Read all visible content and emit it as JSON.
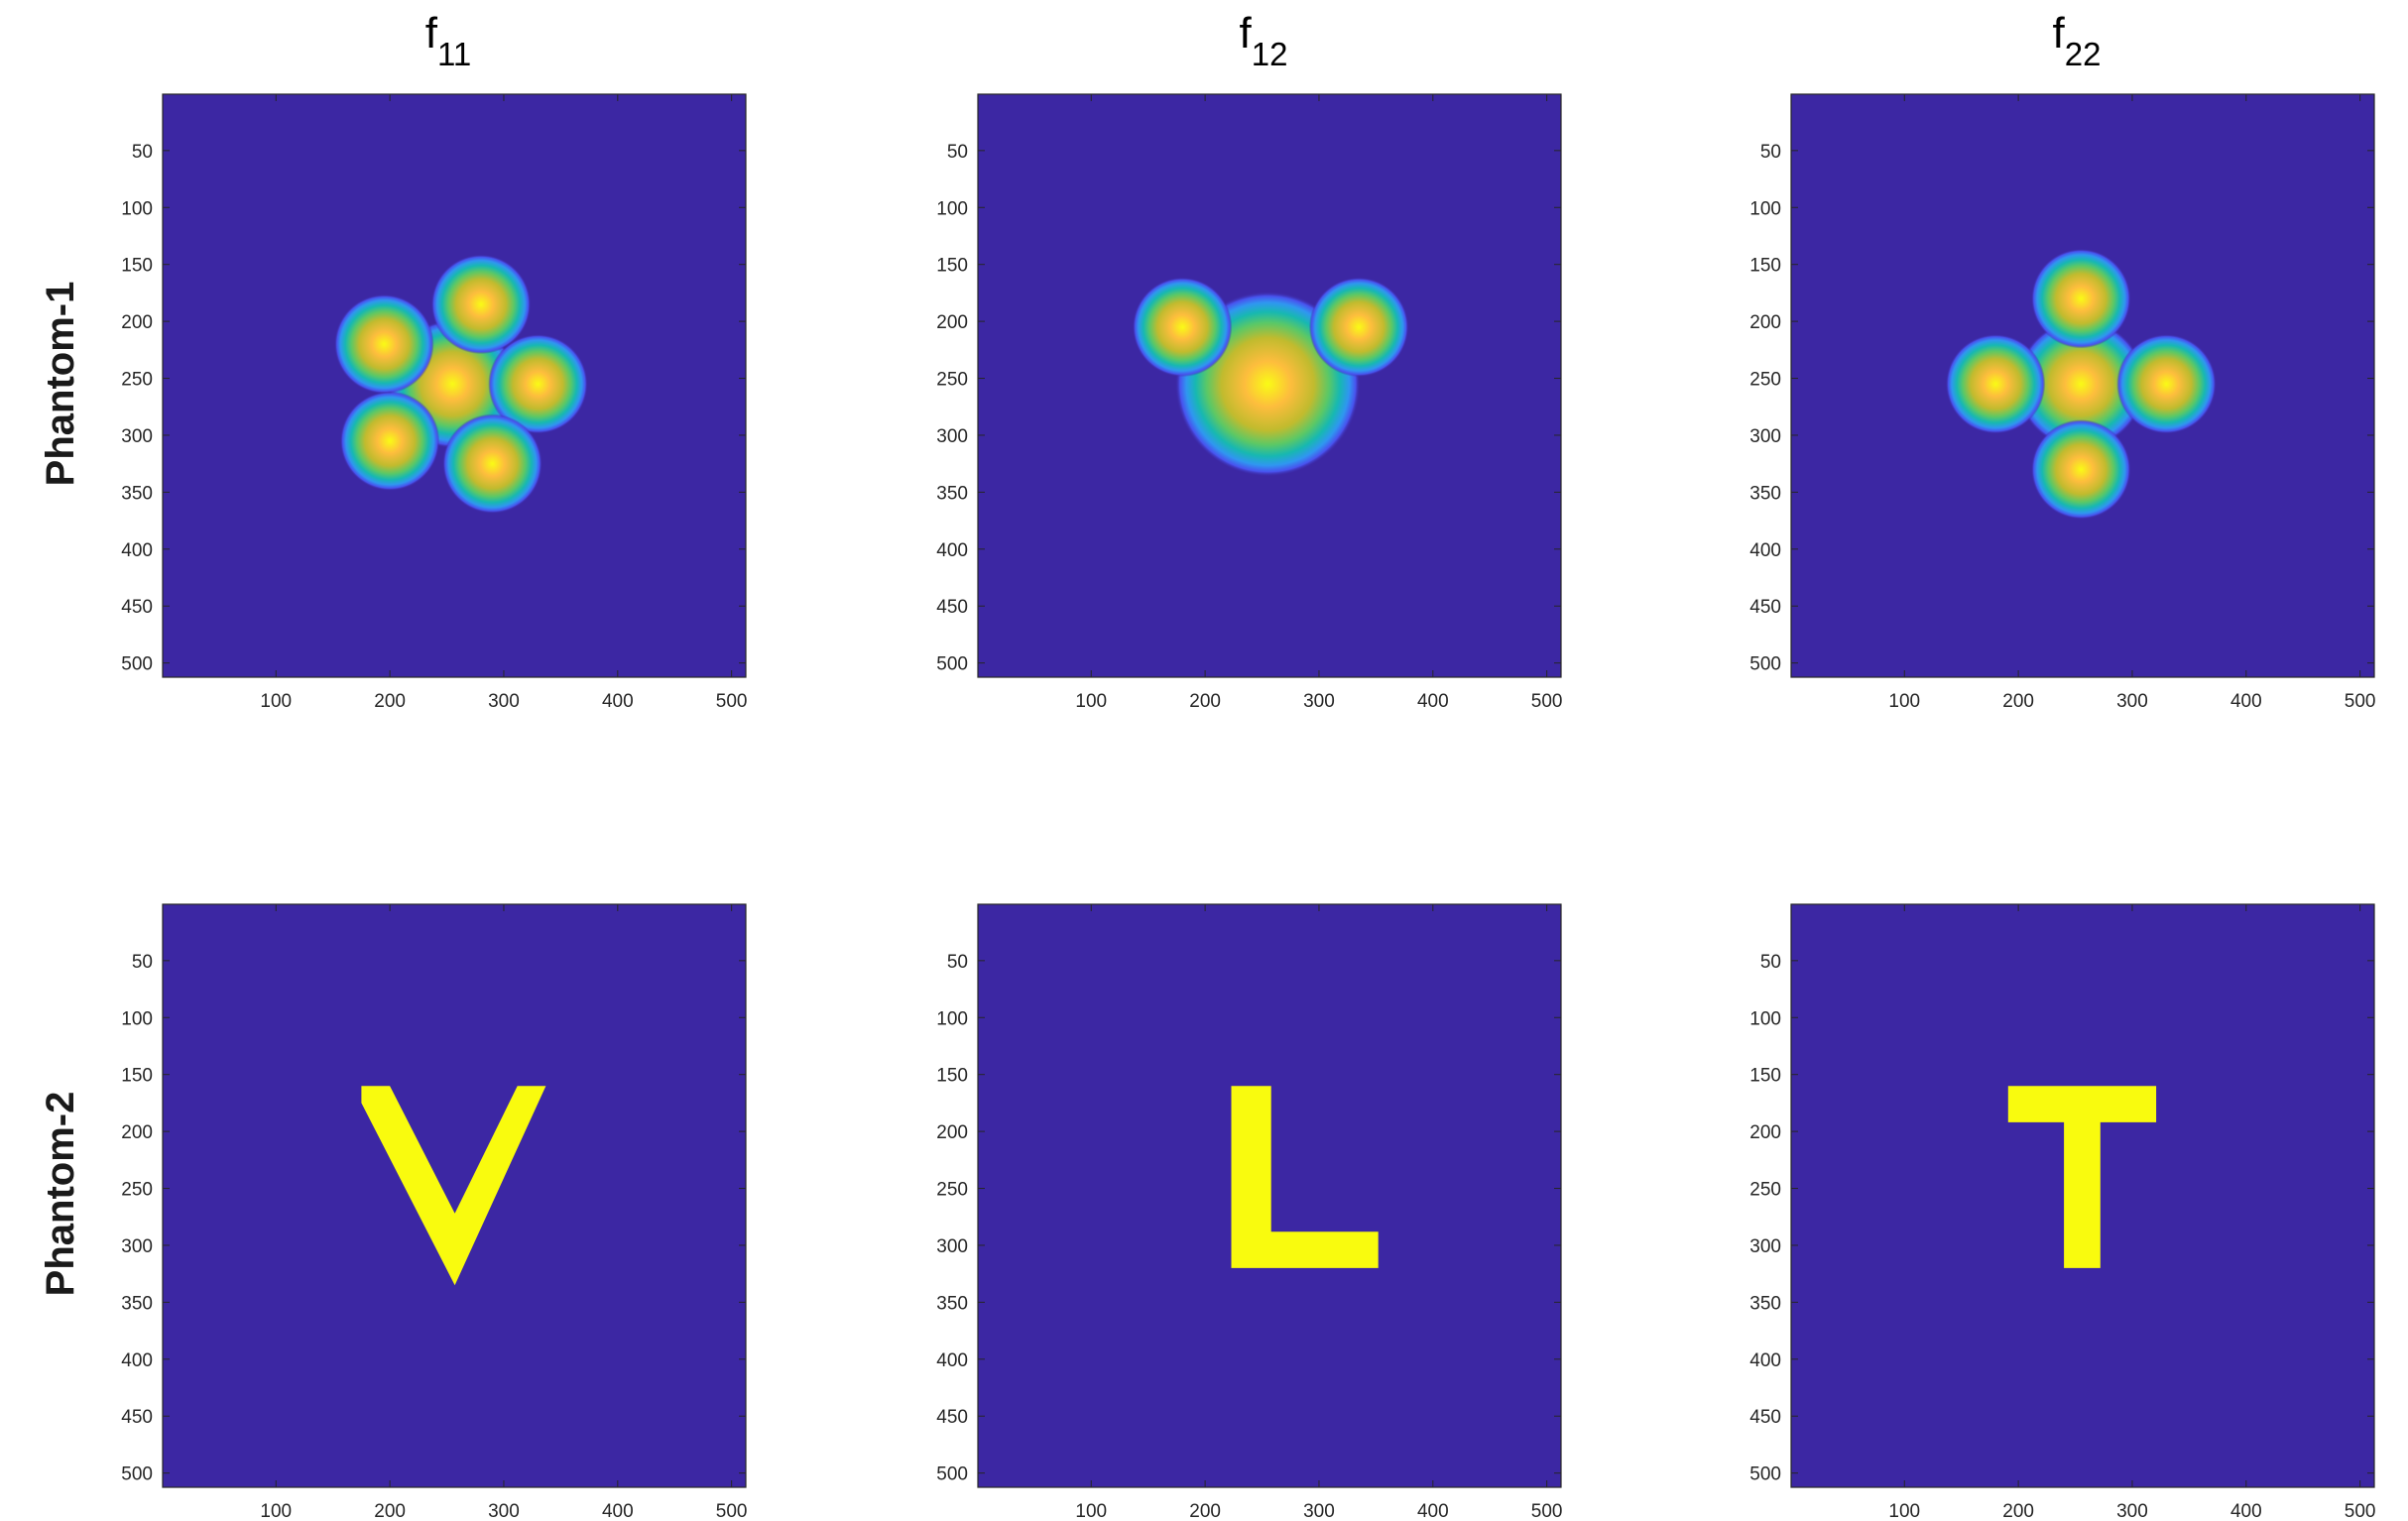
{
  "chart_data": {
    "type": "heatmap",
    "columns": [
      {
        "base": "f",
        "subscript": "11"
      },
      {
        "base": "f",
        "subscript": "12"
      },
      {
        "base": "f",
        "subscript": "22"
      }
    ],
    "rows": [
      "Phantom-1",
      "Phantom-2"
    ],
    "xlim": [
      0.5,
      512.5
    ],
    "ylim": [
      0.5,
      512.5
    ],
    "y_reversed": true,
    "x_ticks": [
      100,
      200,
      300,
      400,
      500
    ],
    "y_ticks": [
      50,
      100,
      150,
      200,
      250,
      300,
      350,
      400,
      450,
      500
    ],
    "colormap": [
      "#3e26a8",
      "#4853ef",
      "#2f97f0",
      "#17b8b1",
      "#5bc866",
      "#c1bb2e",
      "#fdbd3d",
      "#f9fb15"
    ],
    "background_color": "#3c27a3",
    "foreground_color": "#f9fb0e",
    "panels": [
      {
        "row": "Phantom-1",
        "column": "f11",
        "kind": "blobs",
        "blobs": [
          {
            "x": 255,
            "y": 255,
            "r": 45
          },
          {
            "x": 280,
            "y": 185,
            "r": 35
          },
          {
            "x": 195,
            "y": 220,
            "r": 35
          },
          {
            "x": 330,
            "y": 255,
            "r": 35
          },
          {
            "x": 200,
            "y": 305,
            "r": 35
          },
          {
            "x": 290,
            "y": 325,
            "r": 35
          }
        ]
      },
      {
        "row": "Phantom-1",
        "column": "f12",
        "kind": "blobs",
        "blobs": [
          {
            "x": 255,
            "y": 255,
            "r": 65
          },
          {
            "x": 180,
            "y": 205,
            "r": 35
          },
          {
            "x": 335,
            "y": 205,
            "r": 35
          }
        ]
      },
      {
        "row": "Phantom-1",
        "column": "f22",
        "kind": "blobs",
        "blobs": [
          {
            "x": 255,
            "y": 255,
            "r": 45
          },
          {
            "x": 255,
            "y": 180,
            "r": 35
          },
          {
            "x": 180,
            "y": 255,
            "r": 35
          },
          {
            "x": 330,
            "y": 255,
            "r": 35
          },
          {
            "x": 255,
            "y": 330,
            "r": 35
          }
        ]
      },
      {
        "row": "Phantom-2",
        "column": "f11",
        "kind": "polygon",
        "letter": "V",
        "points": [
          [
            175,
            160
          ],
          [
            200,
            160
          ],
          [
            257,
            272
          ],
          [
            312,
            160
          ],
          [
            337,
            160
          ],
          [
            257,
            335
          ],
          [
            175,
            175
          ]
        ]
      },
      {
        "row": "Phantom-2",
        "column": "f12",
        "kind": "polygon",
        "letter": "L",
        "points": [
          [
            223,
            160
          ],
          [
            258,
            160
          ],
          [
            258,
            288
          ],
          [
            352,
            288
          ],
          [
            352,
            320
          ],
          [
            223,
            320
          ]
        ]
      },
      {
        "row": "Phantom-2",
        "column": "f22",
        "kind": "polygon",
        "letter": "T",
        "points": [
          [
            191,
            160
          ],
          [
            321,
            160
          ],
          [
            321,
            192
          ],
          [
            272,
            192
          ],
          [
            272,
            320
          ],
          [
            240,
            320
          ],
          [
            240,
            192
          ],
          [
            191,
            192
          ]
        ]
      }
    ]
  }
}
